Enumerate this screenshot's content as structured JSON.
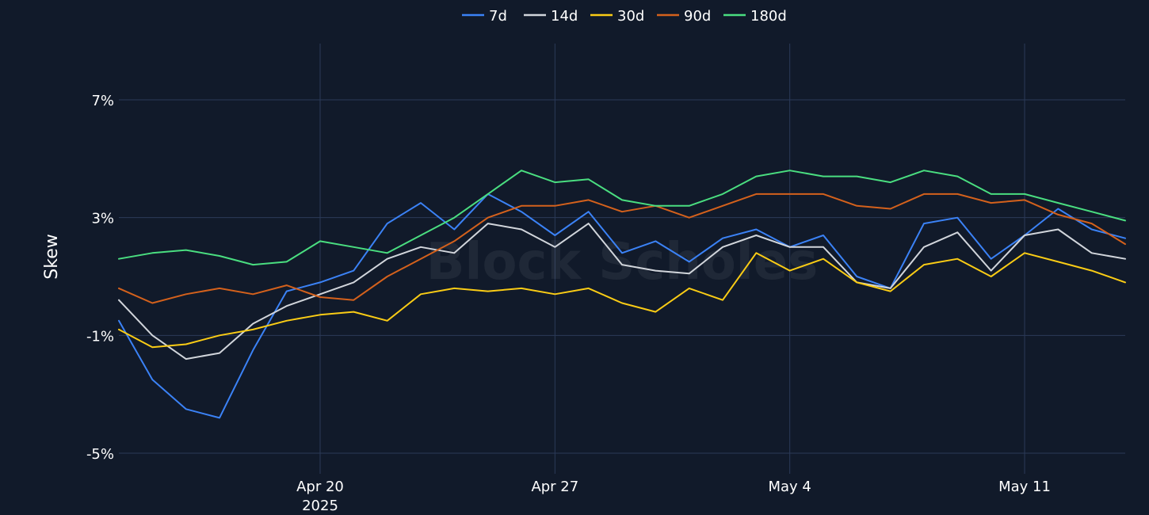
{
  "chart_data": {
    "type": "line",
    "xlabel": "",
    "ylabel": "Skew",
    "x_range": [
      "2025-04-14",
      "2025-05-14"
    ],
    "ylim": [
      -5,
      8.2
    ],
    "y_ticks": [
      {
        "value": 7,
        "label": "7%"
      },
      {
        "value": 3,
        "label": "3%"
      },
      {
        "value": -1,
        "label": "-1%"
      },
      {
        "value": -5,
        "label": "-5%"
      }
    ],
    "x_ticks": [
      {
        "date": "2025-04-20",
        "label": "Apr 20",
        "sublabel": "2025"
      },
      {
        "date": "2025-04-27",
        "label": "Apr 27",
        "sublabel": ""
      },
      {
        "date": "2025-05-04",
        "label": "May 4",
        "sublabel": ""
      },
      {
        "date": "2025-05-11",
        "label": "May 11",
        "sublabel": ""
      }
    ],
    "grid": true,
    "legend_position": "top-center",
    "watermark": "Block Scholes",
    "series": [
      {
        "name": "7d",
        "color": "#3b82f6",
        "x": [
          "2025-04-14",
          "2025-04-15",
          "2025-04-16",
          "2025-04-17",
          "2025-04-18",
          "2025-04-19",
          "2025-04-20",
          "2025-04-21",
          "2025-04-22",
          "2025-04-23",
          "2025-04-24",
          "2025-04-25",
          "2025-04-26",
          "2025-04-27",
          "2025-04-28",
          "2025-04-29",
          "2025-04-30",
          "2025-05-01",
          "2025-05-02",
          "2025-05-03",
          "2025-05-04",
          "2025-05-05",
          "2025-05-06",
          "2025-05-07",
          "2025-05-08",
          "2025-05-09",
          "2025-05-10",
          "2025-05-11",
          "2025-05-12",
          "2025-05-13",
          "2025-05-14"
        ],
        "values": [
          -0.5,
          -2.5,
          -3.5,
          -3.8,
          -1.5,
          0.5,
          0.8,
          1.2,
          2.8,
          3.5,
          2.6,
          3.8,
          3.2,
          2.4,
          3.2,
          1.8,
          2.2,
          1.5,
          2.3,
          2.6,
          2.0,
          2.4,
          1.0,
          0.6,
          2.8,
          3.0,
          1.6,
          2.4,
          3.3,
          2.6,
          2.3
        ]
      },
      {
        "name": "14d",
        "color": "#d1d5db",
        "x": [
          "2025-04-14",
          "2025-04-15",
          "2025-04-16",
          "2025-04-17",
          "2025-04-18",
          "2025-04-19",
          "2025-04-20",
          "2025-04-21",
          "2025-04-22",
          "2025-04-23",
          "2025-04-24",
          "2025-04-25",
          "2025-04-26",
          "2025-04-27",
          "2025-04-28",
          "2025-04-29",
          "2025-04-30",
          "2025-05-01",
          "2025-05-02",
          "2025-05-03",
          "2025-05-04",
          "2025-05-05",
          "2025-05-06",
          "2025-05-07",
          "2025-05-08",
          "2025-05-09",
          "2025-05-10",
          "2025-05-11",
          "2025-05-12",
          "2025-05-13",
          "2025-05-14"
        ],
        "values": [
          0.2,
          -1.0,
          -1.8,
          -1.6,
          -0.6,
          0.0,
          0.4,
          0.8,
          1.6,
          2.0,
          1.8,
          2.8,
          2.6,
          2.0,
          2.8,
          1.4,
          1.2,
          1.1,
          2.0,
          2.4,
          2.0,
          2.0,
          0.8,
          0.6,
          2.0,
          2.5,
          1.2,
          2.4,
          2.6,
          1.8,
          1.6
        ]
      },
      {
        "name": "30d",
        "color": "#facc15",
        "x": [
          "2025-04-14",
          "2025-04-15",
          "2025-04-16",
          "2025-04-17",
          "2025-04-18",
          "2025-04-19",
          "2025-04-20",
          "2025-04-21",
          "2025-04-22",
          "2025-04-23",
          "2025-04-24",
          "2025-04-25",
          "2025-04-26",
          "2025-04-27",
          "2025-04-28",
          "2025-04-29",
          "2025-04-30",
          "2025-05-01",
          "2025-05-02",
          "2025-05-03",
          "2025-05-04",
          "2025-05-05",
          "2025-05-06",
          "2025-05-07",
          "2025-05-08",
          "2025-05-09",
          "2025-05-10",
          "2025-05-11",
          "2025-05-12",
          "2025-05-13",
          "2025-05-14"
        ],
        "values": [
          -0.8,
          -1.4,
          -1.3,
          -1.0,
          -0.8,
          -0.5,
          -0.3,
          -0.2,
          -0.5,
          0.4,
          0.6,
          0.5,
          0.6,
          0.4,
          0.6,
          0.1,
          -0.2,
          0.6,
          0.2,
          1.8,
          1.2,
          1.6,
          0.8,
          0.5,
          1.4,
          1.6,
          1.0,
          1.8,
          1.5,
          1.2,
          0.8
        ]
      },
      {
        "name": "90d",
        "color": "#d4611c",
        "x": [
          "2025-04-14",
          "2025-04-15",
          "2025-04-16",
          "2025-04-17",
          "2025-04-18",
          "2025-04-19",
          "2025-04-20",
          "2025-04-21",
          "2025-04-22",
          "2025-04-23",
          "2025-04-24",
          "2025-04-25",
          "2025-04-26",
          "2025-04-27",
          "2025-04-28",
          "2025-04-29",
          "2025-04-30",
          "2025-05-01",
          "2025-05-02",
          "2025-05-03",
          "2025-05-04",
          "2025-05-05",
          "2025-05-06",
          "2025-05-07",
          "2025-05-08",
          "2025-05-09",
          "2025-05-10",
          "2025-05-11",
          "2025-05-12",
          "2025-05-13",
          "2025-05-14"
        ],
        "values": [
          0.6,
          0.1,
          0.4,
          0.6,
          0.4,
          0.7,
          0.3,
          0.2,
          1.0,
          1.6,
          2.2,
          3.0,
          3.4,
          3.4,
          3.6,
          3.2,
          3.4,
          3.0,
          3.4,
          3.8,
          3.8,
          3.8,
          3.4,
          3.3,
          3.8,
          3.8,
          3.5,
          3.6,
          3.1,
          2.8,
          2.1
        ]
      },
      {
        "name": "180d",
        "color": "#4ade80",
        "x": [
          "2025-04-14",
          "2025-04-15",
          "2025-04-16",
          "2025-04-17",
          "2025-04-18",
          "2025-04-19",
          "2025-04-20",
          "2025-04-21",
          "2025-04-22",
          "2025-04-23",
          "2025-04-24",
          "2025-04-25",
          "2025-04-26",
          "2025-04-27",
          "2025-04-28",
          "2025-04-29",
          "2025-04-30",
          "2025-05-01",
          "2025-05-02",
          "2025-05-03",
          "2025-05-04",
          "2025-05-05",
          "2025-05-06",
          "2025-05-07",
          "2025-05-08",
          "2025-05-09",
          "2025-05-10",
          "2025-05-11",
          "2025-05-12",
          "2025-05-13",
          "2025-05-14"
        ],
        "values": [
          1.6,
          1.8,
          1.9,
          1.7,
          1.4,
          1.5,
          2.2,
          2.0,
          1.8,
          2.4,
          3.0,
          3.8,
          4.6,
          4.2,
          4.3,
          3.6,
          3.4,
          3.4,
          3.8,
          4.4,
          4.6,
          4.4,
          4.4,
          4.2,
          4.6,
          4.4,
          3.8,
          3.8,
          3.5,
          3.2,
          2.9
        ]
      }
    ]
  }
}
